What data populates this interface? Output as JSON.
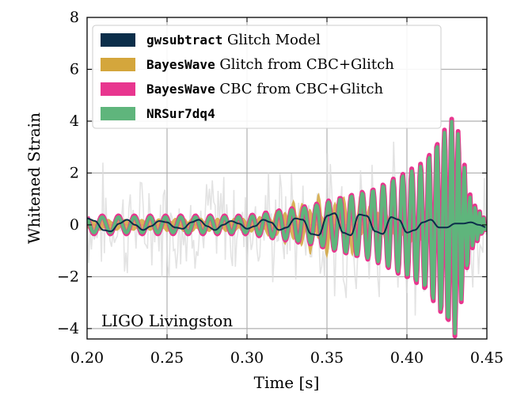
{
  "chart_data": {
    "type": "line",
    "xlabel": "Time [s]",
    "ylabel": "Whitened Strain",
    "xlim": [
      0.2,
      0.45
    ],
    "ylim": [
      -4.4,
      8
    ],
    "xticks": [
      0.2,
      0.25,
      0.3,
      0.35,
      0.4,
      0.45
    ],
    "xtick_labels": [
      "0.20",
      "0.25",
      "0.30",
      "0.35",
      "0.40",
      "0.45"
    ],
    "yticks": [
      -4,
      -2,
      0,
      2,
      4,
      6,
      8
    ],
    "ytick_labels": [
      "−4",
      "−2",
      "0",
      "2",
      "4",
      "6",
      "8"
    ],
    "grid": true,
    "legend_position": "top-left",
    "annotation": "LIGO Livingston",
    "colors": {
      "data": "#d9d9d9",
      "gwsubtract": "#0b2e4a",
      "bw_glitch": "#d4a63c",
      "bw_cbc": "#e8368f",
      "nrsur": "#5fb57c"
    },
    "series": [
      {
        "name": "gwsubtract Glitch Model",
        "legend_code": "gwsubtract",
        "legend_rest": " Glitch Model",
        "kind": "line",
        "x": [
          0.2,
          0.205,
          0.21,
          0.215,
          0.22,
          0.225,
          0.23,
          0.235,
          0.24,
          0.245,
          0.25,
          0.255,
          0.26,
          0.265,
          0.27,
          0.275,
          0.28,
          0.285,
          0.29,
          0.295,
          0.3,
          0.305,
          0.31,
          0.315,
          0.32,
          0.325,
          0.33,
          0.335,
          0.34,
          0.345,
          0.35,
          0.355,
          0.36,
          0.365,
          0.37,
          0.375,
          0.38,
          0.385,
          0.39,
          0.395,
          0.4,
          0.405,
          0.41,
          0.415,
          0.42,
          0.425,
          0.43,
          0.435,
          0.44,
          0.445,
          0.45
        ],
        "y": [
          0.25,
          0.15,
          -0.2,
          -0.25,
          0.05,
          0.2,
          0.0,
          -0.2,
          -0.05,
          0.15,
          0.1,
          -0.1,
          -0.15,
          0.1,
          0.2,
          -0.05,
          -0.2,
          0.0,
          0.15,
          0.05,
          -0.15,
          -0.05,
          0.2,
          0.1,
          -0.2,
          -0.1,
          0.25,
          0.2,
          -0.35,
          -0.4,
          0.35,
          0.45,
          -0.3,
          -0.4,
          0.4,
          0.35,
          -0.25,
          -0.35,
          0.3,
          0.2,
          -0.3,
          -0.2,
          0.1,
          0.2,
          -0.1,
          -0.1,
          0.05,
          0.05,
          0.1,
          0.0,
          -0.1
        ]
      },
      {
        "name": "BayesWave Glitch from CBC+Glitch",
        "legend_code": "BayesWave",
        "legend_rest": " Glitch from CBC+Glitch",
        "kind": "band",
        "x": [
          0.2,
          0.21,
          0.22,
          0.23,
          0.24,
          0.25,
          0.26,
          0.27,
          0.28,
          0.29,
          0.3,
          0.31,
          0.32,
          0.33,
          0.34,
          0.35,
          0.36,
          0.37,
          0.38,
          0.39,
          0.4,
          0.41,
          0.42,
          0.43,
          0.44,
          0.45
        ],
        "y": [
          0.0,
          0.0,
          0.0,
          0.0,
          0.0,
          0.0,
          0.0,
          0.0,
          0.0,
          0.0,
          0.0,
          0.0,
          0.1,
          0.2,
          -0.3,
          -0.4,
          0.3,
          0.5,
          -0.3,
          0.3,
          -0.3,
          0.2,
          -0.2,
          0.1,
          0.0,
          0.0
        ],
        "halfwidth": [
          0.15,
          0.15,
          0.15,
          0.15,
          0.15,
          0.2,
          0.2,
          0.2,
          0.2,
          0.2,
          0.2,
          0.3,
          0.5,
          0.8,
          0.9,
          0.9,
          0.8,
          0.8,
          0.7,
          0.6,
          0.5,
          0.5,
          0.4,
          0.3,
          0.2,
          0.1
        ]
      },
      {
        "name": "BayesWave CBC from CBC+Glitch",
        "legend_code": "BayesWave",
        "legend_rest": " CBC from CBC+Glitch",
        "kind": "chirp",
        "x": [
          0.2,
          0.45
        ],
        "amplitude_at": [
          [
            0.2,
            0.35
          ],
          [
            0.3,
            0.35
          ],
          [
            0.34,
            0.75
          ],
          [
            0.38,
            1.4
          ],
          [
            0.41,
            2.4
          ],
          [
            0.425,
            3.8
          ],
          [
            0.43,
            4.3
          ],
          [
            0.44,
            1.0
          ],
          [
            0.45,
            0.1
          ]
        ]
      },
      {
        "name": "NRSur7dq4",
        "legend_code": "NRSur7dq4",
        "legend_rest": "",
        "kind": "chirp",
        "x": [
          0.2,
          0.45
        ],
        "amplitude_at": [
          [
            0.2,
            0.3
          ],
          [
            0.3,
            0.3
          ],
          [
            0.34,
            0.7
          ],
          [
            0.38,
            1.35
          ],
          [
            0.41,
            2.3
          ],
          [
            0.425,
            3.7
          ],
          [
            0.43,
            4.2
          ],
          [
            0.44,
            0.9
          ],
          [
            0.45,
            0.1
          ]
        ]
      }
    ]
  }
}
